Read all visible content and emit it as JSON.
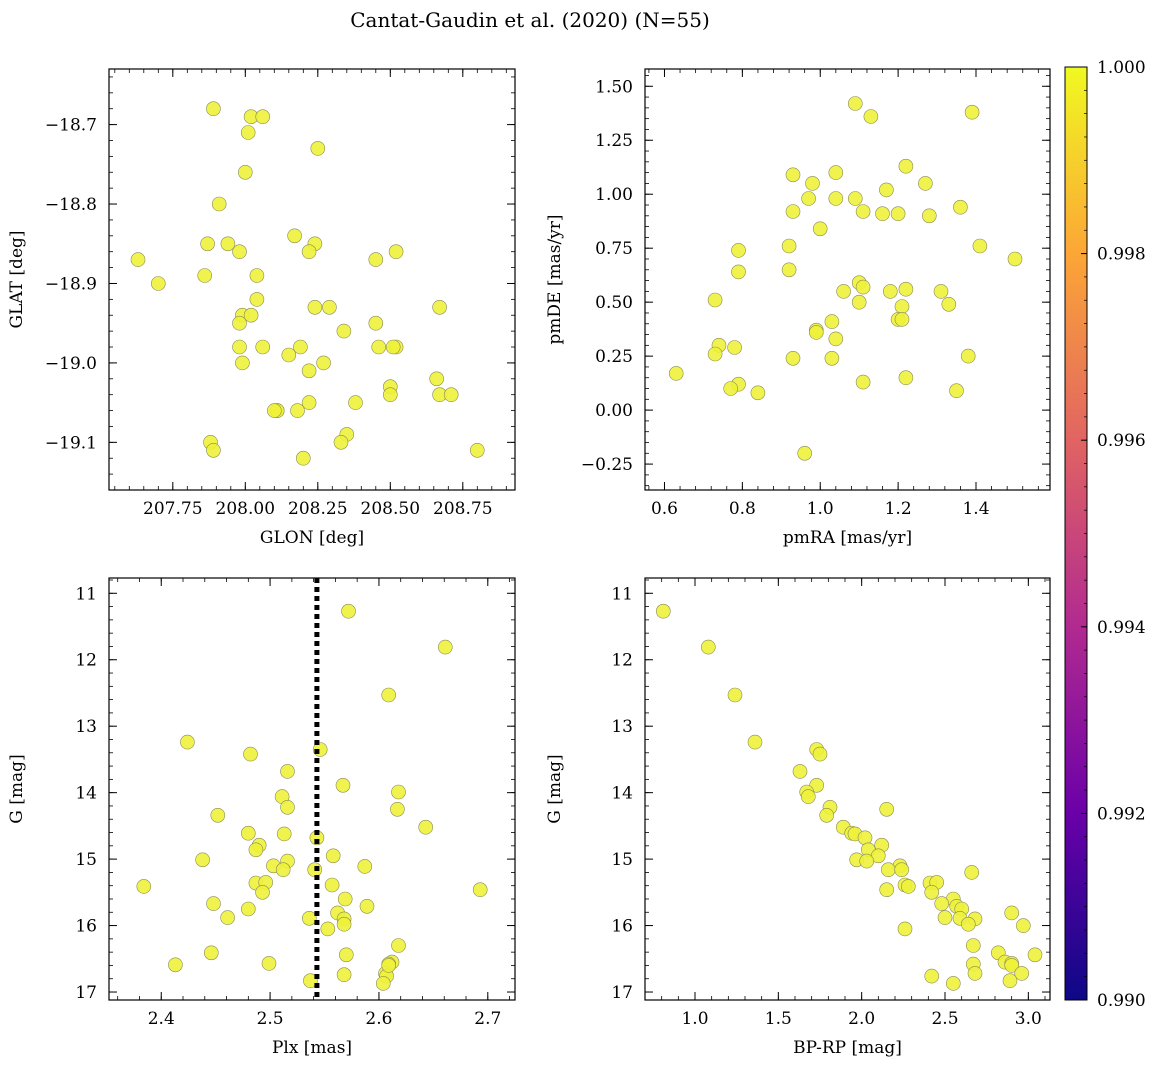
{
  "figure": {
    "title": "Cantat-Gaudin et al. (2020) (N=55)"
  },
  "colorbar": {
    "ticks": [
      "1.000",
      "0.998",
      "0.996",
      "0.994",
      "0.992",
      "0.990"
    ],
    "tick_values": [
      1.0,
      0.998,
      0.996,
      0.994,
      0.992,
      0.99
    ],
    "range": [
      0.99,
      1.0
    ],
    "colors": [
      "#0d0887",
      "#6a00a8",
      "#b12a90",
      "#e16462",
      "#fca636",
      "#f0f921"
    ]
  },
  "marker_color": "#eef23a",
  "chart_data": [
    {
      "type": "scatter",
      "xlabel": "GLON [deg]",
      "ylabel": "GLAT [deg]",
      "xlim": [
        207.53,
        208.93
      ],
      "ylim": [
        -19.16,
        -18.63
      ],
      "invert_y": false,
      "xticks": [
        207.75,
        208.0,
        208.25,
        208.5,
        208.75
      ],
      "xtick_labels": [
        "207.75",
        "208.00",
        "208.25",
        "208.50",
        "208.75"
      ],
      "yticks": [
        -18.7,
        -18.8,
        -18.9,
        -19.0,
        -19.1
      ],
      "ytick_labels": [
        "−18.7",
        "−18.8",
        "−18.9",
        "−19.0",
        "−19.1"
      ],
      "points": [
        [
          207.89,
          -18.68
        ],
        [
          208.02,
          -18.69
        ],
        [
          208.06,
          -18.69
        ],
        [
          208.01,
          -18.71
        ],
        [
          208.25,
          -18.73
        ],
        [
          208.0,
          -18.76
        ],
        [
          207.91,
          -18.8
        ],
        [
          207.87,
          -18.85
        ],
        [
          207.94,
          -18.85
        ],
        [
          207.98,
          -18.86
        ],
        [
          208.17,
          -18.84
        ],
        [
          208.24,
          -18.85
        ],
        [
          208.22,
          -18.86
        ],
        [
          208.52,
          -18.86
        ],
        [
          207.63,
          -18.87
        ],
        [
          208.45,
          -18.87
        ],
        [
          207.86,
          -18.89
        ],
        [
          208.04,
          -18.89
        ],
        [
          207.7,
          -18.9
        ],
        [
          208.04,
          -18.92
        ],
        [
          207.99,
          -18.94
        ],
        [
          208.02,
          -18.94
        ],
        [
          208.24,
          -18.93
        ],
        [
          208.29,
          -18.93
        ],
        [
          208.67,
          -18.93
        ],
        [
          207.98,
          -18.95
        ],
        [
          208.45,
          -18.95
        ],
        [
          208.34,
          -18.96
        ],
        [
          208.52,
          -18.98
        ],
        [
          207.98,
          -18.98
        ],
        [
          208.06,
          -18.98
        ],
        [
          208.19,
          -18.98
        ],
        [
          208.46,
          -18.98
        ],
        [
          207.99,
          -19.0
        ],
        [
          208.15,
          -18.99
        ],
        [
          208.27,
          -19.0
        ],
        [
          208.22,
          -19.01
        ],
        [
          208.66,
          -19.02
        ],
        [
          208.5,
          -19.03
        ],
        [
          208.67,
          -19.04
        ],
        [
          208.71,
          -19.04
        ],
        [
          208.5,
          -19.04
        ],
        [
          208.22,
          -19.05
        ],
        [
          208.11,
          -19.06
        ],
        [
          208.11,
          -19.06
        ],
        [
          208.18,
          -19.06
        ],
        [
          208.38,
          -19.05
        ],
        [
          208.35,
          -19.09
        ],
        [
          207.88,
          -19.1
        ],
        [
          208.33,
          -19.1
        ],
        [
          207.89,
          -19.11
        ],
        [
          208.8,
          -19.11
        ],
        [
          208.2,
          -19.12
        ],
        [
          208.51,
          -18.98
        ],
        [
          208.1,
          -19.06
        ]
      ]
    },
    {
      "type": "scatter",
      "xlabel": "pmRA [mas/yr]",
      "ylabel": "pmDE [mas/yr]",
      "xlim": [
        0.55,
        1.59
      ],
      "ylim": [
        -0.37,
        1.58
      ],
      "invert_y": false,
      "xticks": [
        0.6,
        0.8,
        1.0,
        1.2,
        1.4
      ],
      "xtick_labels": [
        "0.6",
        "0.8",
        "1.0",
        "1.2",
        "1.4"
      ],
      "yticks": [
        -0.25,
        0.0,
        0.25,
        0.5,
        0.75,
        1.0,
        1.25,
        1.5
      ],
      "ytick_labels": [
        "−0.25",
        "0.00",
        "0.25",
        "0.50",
        "0.75",
        "1.00",
        "1.25",
        "1.50"
      ],
      "points": [
        [
          1.09,
          1.42
        ],
        [
          1.39,
          1.38
        ],
        [
          1.13,
          1.36
        ],
        [
          1.22,
          1.13
        ],
        [
          0.93,
          1.09
        ],
        [
          1.04,
          1.1
        ],
        [
          0.98,
          1.05
        ],
        [
          1.27,
          1.05
        ],
        [
          1.17,
          1.02
        ],
        [
          0.97,
          0.98
        ],
        [
          1.04,
          0.98
        ],
        [
          1.09,
          0.98
        ],
        [
          1.36,
          0.94
        ],
        [
          0.93,
          0.92
        ],
        [
          1.11,
          0.92
        ],
        [
          1.16,
          0.91
        ],
        [
          1.2,
          0.91
        ],
        [
          1.28,
          0.9
        ],
        [
          1.0,
          0.84
        ],
        [
          0.92,
          0.76
        ],
        [
          1.41,
          0.76
        ],
        [
          0.79,
          0.74
        ],
        [
          1.5,
          0.7
        ],
        [
          0.92,
          0.65
        ],
        [
          0.79,
          0.64
        ],
        [
          1.1,
          0.59
        ],
        [
          1.11,
          0.57
        ],
        [
          1.22,
          0.56
        ],
        [
          1.06,
          0.55
        ],
        [
          1.18,
          0.55
        ],
        [
          1.31,
          0.55
        ],
        [
          0.73,
          0.51
        ],
        [
          1.1,
          0.5
        ],
        [
          1.33,
          0.49
        ],
        [
          1.21,
          0.48
        ],
        [
          1.2,
          0.42
        ],
        [
          1.21,
          0.42
        ],
        [
          1.03,
          0.41
        ],
        [
          0.99,
          0.37
        ],
        [
          0.99,
          0.36
        ],
        [
          1.04,
          0.33
        ],
        [
          0.74,
          0.3
        ],
        [
          0.78,
          0.29
        ],
        [
          0.73,
          0.26
        ],
        [
          0.93,
          0.24
        ],
        [
          1.03,
          0.24
        ],
        [
          1.38,
          0.25
        ],
        [
          0.63,
          0.17
        ],
        [
          1.22,
          0.15
        ],
        [
          1.11,
          0.13
        ],
        [
          0.79,
          0.12
        ],
        [
          0.77,
          0.1
        ],
        [
          0.84,
          0.08
        ],
        [
          1.35,
          0.09
        ],
        [
          0.96,
          -0.2
        ]
      ]
    },
    {
      "type": "scatter",
      "xlabel": "Plx [mas]",
      "ylabel": "G [mag]",
      "xlim": [
        2.352,
        2.725
      ],
      "ylim": [
        10.77,
        17.12
      ],
      "invert_y": true,
      "vline": 2.543,
      "xticks": [
        2.4,
        2.5,
        2.6,
        2.7
      ],
      "xtick_labels": [
        "2.4",
        "2.5",
        "2.6",
        "2.7"
      ],
      "yticks": [
        11,
        12,
        13,
        14,
        15,
        16,
        17
      ],
      "ytick_labels": [
        "11",
        "12",
        "13",
        "14",
        "15",
        "16",
        "17"
      ],
      "points": [
        [
          2.572,
          11.27
        ],
        [
          2.661,
          11.81
        ],
        [
          2.609,
          12.53
        ],
        [
          2.424,
          13.24
        ],
        [
          2.546,
          13.35
        ],
        [
          2.482,
          13.42
        ],
        [
          2.516,
          13.68
        ],
        [
          2.567,
          13.89
        ],
        [
          2.618,
          13.99
        ],
        [
          2.511,
          14.06
        ],
        [
          2.617,
          14.25
        ],
        [
          2.516,
          14.22
        ],
        [
          2.452,
          14.34
        ],
        [
          2.643,
          14.52
        ],
        [
          2.48,
          14.61
        ],
        [
          2.513,
          14.62
        ],
        [
          2.543,
          14.68
        ],
        [
          2.49,
          14.79
        ],
        [
          2.487,
          14.86
        ],
        [
          2.558,
          14.95
        ],
        [
          2.438,
          15.01
        ],
        [
          2.516,
          15.03
        ],
        [
          2.503,
          15.1
        ],
        [
          2.512,
          15.16
        ],
        [
          2.541,
          15.16
        ],
        [
          2.587,
          15.11
        ],
        [
          2.487,
          15.36
        ],
        [
          2.496,
          15.35
        ],
        [
          2.557,
          15.39
        ],
        [
          2.693,
          15.46
        ],
        [
          2.384,
          15.41
        ],
        [
          2.493,
          15.5
        ],
        [
          2.569,
          15.6
        ],
        [
          2.448,
          15.67
        ],
        [
          2.589,
          15.71
        ],
        [
          2.48,
          15.75
        ],
        [
          2.562,
          15.81
        ],
        [
          2.461,
          15.88
        ],
        [
          2.536,
          15.89
        ],
        [
          2.568,
          15.9
        ],
        [
          2.568,
          15.98
        ],
        [
          2.553,
          16.05
        ],
        [
          2.618,
          16.3
        ],
        [
          2.446,
          16.41
        ],
        [
          2.57,
          16.44
        ],
        [
          2.413,
          16.59
        ],
        [
          2.499,
          16.57
        ],
        [
          2.612,
          16.55
        ],
        [
          2.609,
          16.58
        ],
        [
          2.606,
          16.72
        ],
        [
          2.568,
          16.74
        ],
        [
          2.607,
          16.76
        ],
        [
          2.604,
          16.87
        ],
        [
          2.537,
          16.83
        ],
        [
          2.609,
          16.6
        ]
      ]
    },
    {
      "type": "scatter",
      "xlabel": "BP-RP [mag]",
      "ylabel": "G [mag]",
      "xlim": [
        0.7,
        3.13
      ],
      "ylim": [
        10.77,
        17.12
      ],
      "invert_y": true,
      "xticks": [
        1.0,
        1.5,
        2.0,
        2.5,
        3.0
      ],
      "xtick_labels": [
        "1.0",
        "1.5",
        "2.0",
        "2.5",
        "3.0"
      ],
      "yticks": [
        11,
        12,
        13,
        14,
        15,
        16,
        17
      ],
      "ytick_labels": [
        "11",
        "12",
        "13",
        "14",
        "15",
        "16",
        "17"
      ],
      "points": [
        [
          0.81,
          11.27
        ],
        [
          1.08,
          11.81
        ],
        [
          1.24,
          12.53
        ],
        [
          1.36,
          13.24
        ],
        [
          1.73,
          13.35
        ],
        [
          1.75,
          13.42
        ],
        [
          1.63,
          13.68
        ],
        [
          1.73,
          13.89
        ],
        [
          1.67,
          13.99
        ],
        [
          1.68,
          14.06
        ],
        [
          2.15,
          14.25
        ],
        [
          1.81,
          14.22
        ],
        [
          1.79,
          14.34
        ],
        [
          1.89,
          14.52
        ],
        [
          1.94,
          14.61
        ],
        [
          1.96,
          14.62
        ],
        [
          2.02,
          14.68
        ],
        [
          2.12,
          14.79
        ],
        [
          2.04,
          14.86
        ],
        [
          2.1,
          14.95
        ],
        [
          1.97,
          15.01
        ],
        [
          2.03,
          15.03
        ],
        [
          2.23,
          15.1
        ],
        [
          2.16,
          15.16
        ],
        [
          2.24,
          15.16
        ],
        [
          2.66,
          15.2
        ],
        [
          2.41,
          15.36
        ],
        [
          2.45,
          15.35
        ],
        [
          2.26,
          15.39
        ],
        [
          2.15,
          15.46
        ],
        [
          2.28,
          15.41
        ],
        [
          2.42,
          15.5
        ],
        [
          2.55,
          15.6
        ],
        [
          2.48,
          15.67
        ],
        [
          2.57,
          15.71
        ],
        [
          2.6,
          15.75
        ],
        [
          2.9,
          15.81
        ],
        [
          2.5,
          15.88
        ],
        [
          2.59,
          15.89
        ],
        [
          2.68,
          15.9
        ],
        [
          2.64,
          15.98
        ],
        [
          2.97,
          16.0
        ],
        [
          2.26,
          16.05
        ],
        [
          2.67,
          16.3
        ],
        [
          2.82,
          16.41
        ],
        [
          3.04,
          16.44
        ],
        [
          2.86,
          16.55
        ],
        [
          2.9,
          16.57
        ],
        [
          2.67,
          16.58
        ],
        [
          2.9,
          16.6
        ],
        [
          2.96,
          16.72
        ],
        [
          2.68,
          16.72
        ],
        [
          2.42,
          16.76
        ],
        [
          2.89,
          16.83
        ],
        [
          2.55,
          16.87
        ]
      ]
    }
  ]
}
